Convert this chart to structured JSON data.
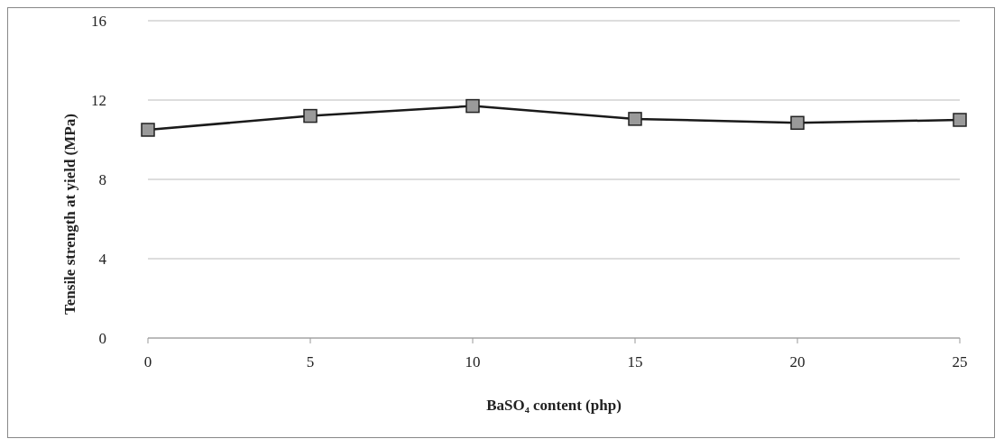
{
  "chart_data": {
    "type": "line",
    "xlabel": "BaSO₄ content (php)",
    "ylabel": "Tensile strength at yield (MPa)",
    "categories": [
      "0",
      "5",
      "10",
      "15",
      "20",
      "25"
    ],
    "series": [
      {
        "color": "#1a1a1a",
        "values": [
          10.5,
          11.2,
          11.7,
          11.05,
          10.85,
          11.0
        ]
      }
    ],
    "ylim": [
      0,
      16
    ],
    "yticks": [
      0,
      4,
      8,
      12,
      16
    ],
    "grid": "y",
    "marker": "square",
    "line_style": "solid"
  }
}
